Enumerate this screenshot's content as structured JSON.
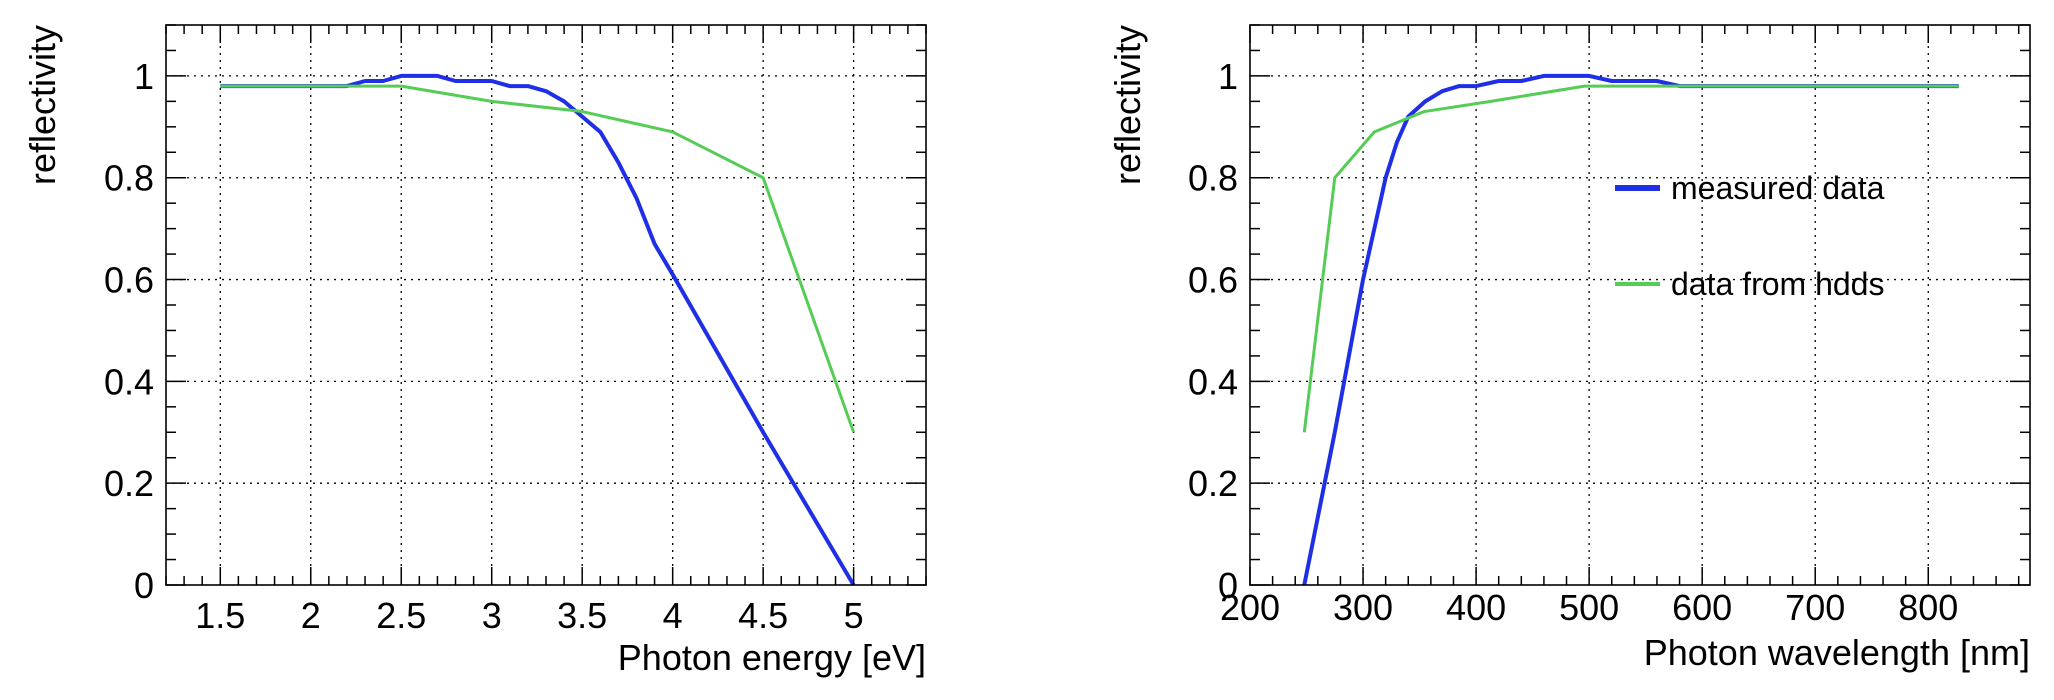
{
  "chart_data": [
    {
      "type": "line",
      "xlabel": "Photon energy [eV]",
      "ylabel": "reflectivity",
      "xlim": [
        1.2,
        5.4
      ],
      "ylim": [
        0,
        1.1
      ],
      "xticks": [
        1.5,
        2,
        2.5,
        3,
        3.5,
        4,
        4.5,
        5
      ],
      "xtick_labels": [
        "1.5",
        "2",
        "2.5",
        "3",
        "3.5",
        "4",
        "4.5",
        "5"
      ],
      "yticks": [
        0,
        0.2,
        0.4,
        0.6,
        0.8,
        1
      ],
      "ytick_labels": [
        "0",
        "0.2",
        "0.4",
        "0.6",
        "0.8",
        "1"
      ],
      "grid": true,
      "series": [
        {
          "color": "#1f2fe6",
          "x": [
            1.5,
            2.0,
            2.2,
            2.3,
            2.4,
            2.5,
            2.6,
            2.7,
            2.8,
            2.9,
            3.0,
            3.1,
            3.2,
            3.3,
            3.4,
            3.5,
            3.6,
            3.7,
            3.8,
            3.9,
            4.0,
            4.5,
            5.0
          ],
          "y": [
            0.98,
            0.98,
            0.98,
            0.99,
            0.99,
            1.0,
            1.0,
            1.0,
            0.99,
            0.99,
            0.99,
            0.98,
            0.98,
            0.97,
            0.95,
            0.92,
            0.89,
            0.83,
            0.76,
            0.67,
            0.61,
            0.3,
            0.0
          ]
        },
        {
          "color": "#55cc55",
          "x": [
            1.5,
            2.0,
            2.5,
            3.0,
            3.5,
            4.0,
            4.5,
            5.0
          ],
          "y": [
            0.98,
            0.98,
            0.98,
            0.95,
            0.93,
            0.89,
            0.8,
            0.3
          ]
        }
      ]
    },
    {
      "type": "line",
      "xlabel": "Photon wavelength [nm]",
      "ylabel": "reflectivity",
      "xlim": [
        200,
        890
      ],
      "ylim": [
        0,
        1.1
      ],
      "xticks": [
        200,
        300,
        400,
        500,
        600,
        700,
        800
      ],
      "xtick_labels": [
        "200",
        "300",
        "400",
        "500",
        "600",
        "700",
        "800"
      ],
      "yticks": [
        0,
        0.2,
        0.4,
        0.6,
        0.8,
        1
      ],
      "ytick_labels": [
        "0",
        "0.2",
        "0.4",
        "0.6",
        "0.8",
        "1"
      ],
      "grid": true,
      "legend": {
        "placement": "middle-right",
        "entries": [
          "measured data",
          "data from hdds"
        ]
      },
      "series": [
        {
          "name": "measured data",
          "color": "#1f2fe6",
          "x": [
            248,
            275,
            300,
            320,
            330,
            340,
            355,
            370,
            385,
            400,
            420,
            440,
            460,
            480,
            500,
            520,
            540,
            560,
            580,
            600,
            700,
            827
          ],
          "y": [
            0.0,
            0.3,
            0.6,
            0.8,
            0.87,
            0.92,
            0.95,
            0.97,
            0.98,
            0.98,
            0.99,
            0.99,
            1.0,
            1.0,
            1.0,
            0.99,
            0.99,
            0.99,
            0.98,
            0.98,
            0.98,
            0.98
          ]
        },
        {
          "name": "data from hdds",
          "color": "#55cc55",
          "x": [
            248,
            275,
            310,
            354,
            413,
            496,
            551,
            620,
            827
          ],
          "y": [
            0.3,
            0.8,
            0.89,
            0.93,
            0.95,
            0.98,
            0.98,
            0.98,
            0.98
          ]
        }
      ]
    }
  ]
}
